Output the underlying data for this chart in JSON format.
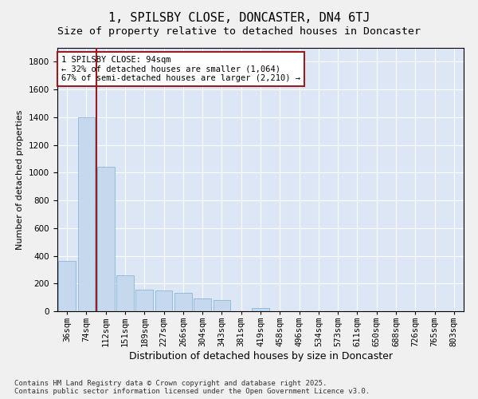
{
  "title": "1, SPILSBY CLOSE, DONCASTER, DN4 6TJ",
  "subtitle": "Size of property relative to detached houses in Doncaster",
  "xlabel": "Distribution of detached houses by size in Doncaster",
  "ylabel": "Number of detached properties",
  "categories": [
    "36sqm",
    "74sqm",
    "112sqm",
    "151sqm",
    "189sqm",
    "227sqm",
    "266sqm",
    "304sqm",
    "343sqm",
    "381sqm",
    "419sqm",
    "458sqm",
    "496sqm",
    "534sqm",
    "573sqm",
    "611sqm",
    "650sqm",
    "688sqm",
    "726sqm",
    "765sqm",
    "803sqm"
  ],
  "values": [
    360,
    1400,
    1040,
    260,
    155,
    150,
    130,
    95,
    80,
    0,
    25,
    0,
    0,
    0,
    0,
    0,
    0,
    0,
    0,
    0,
    0
  ],
  "bar_color": "#c5d8ee",
  "bar_edge_color": "#7aafd4",
  "background_color": "#dce6f5",
  "grid_color": "#ffffff",
  "vline_x": 1.5,
  "vline_color": "#9b1c1c",
  "annotation_text": "1 SPILSBY CLOSE: 94sqm\n← 32% of detached houses are smaller (1,064)\n67% of semi-detached houses are larger (2,210) →",
  "annotation_box_color": "#ffffff",
  "annotation_box_edge_color": "#9b1c1c",
  "ylim": [
    0,
    1900
  ],
  "yticks": [
    0,
    200,
    400,
    600,
    800,
    1000,
    1200,
    1400,
    1600,
    1800
  ],
  "footnote": "Contains HM Land Registry data © Crown copyright and database right 2025.\nContains public sector information licensed under the Open Government Licence v3.0.",
  "title_fontsize": 11,
  "subtitle_fontsize": 9.5,
  "xlabel_fontsize": 9,
  "ylabel_fontsize": 8,
  "tick_fontsize": 7.5,
  "annot_fontsize": 7.5,
  "footnote_fontsize": 6.5,
  "fig_facecolor": "#f0f0f0"
}
